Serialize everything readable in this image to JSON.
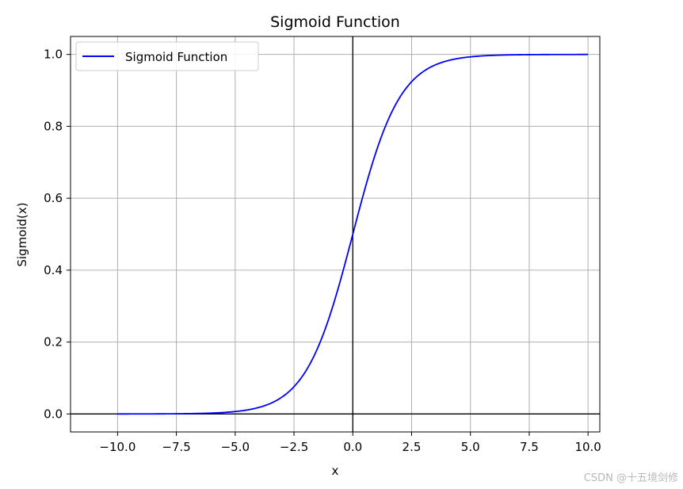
{
  "chart_data": {
    "type": "line",
    "title": "Sigmoid Function",
    "xlabel": "x",
    "ylabel": "Sigmoid(x)",
    "xlim": [
      -12.0,
      10.5
    ],
    "ylim": [
      -0.05,
      1.05
    ],
    "xticks": [
      -10.0,
      -7.5,
      -5.0,
      -2.5,
      0.0,
      2.5,
      5.0,
      7.5,
      10.0
    ],
    "xtick_labels": [
      "−10.0",
      "−7.5",
      "−5.0",
      "−2.5",
      "0.0",
      "2.5",
      "5.0",
      "7.5",
      "10.0"
    ],
    "yticks": [
      0.0,
      0.2,
      0.4,
      0.6,
      0.8,
      1.0
    ],
    "ytick_labels": [
      "0.0",
      "0.2",
      "0.4",
      "0.6",
      "0.8",
      "1.0"
    ],
    "grid": true,
    "legend_position": "upper-left",
    "reference_lines": {
      "x": 0,
      "y": 0,
      "color": "#000000"
    },
    "series": [
      {
        "name": "Sigmoid Function",
        "color": "#0000ff",
        "x": [
          -10,
          -9,
          -8,
          -7,
          -6,
          -5,
          -4,
          -3.5,
          -3,
          -2.5,
          -2,
          -1.5,
          -1,
          -0.5,
          0,
          0.5,
          1,
          1.5,
          2,
          2.5,
          3,
          3.5,
          4,
          5,
          6,
          7,
          8,
          9,
          10
        ],
        "y": [
          4.54e-05,
          0.0001234,
          0.0003354,
          0.000911,
          0.002473,
          0.006693,
          0.017986,
          0.029312,
          0.047426,
          0.075858,
          0.119203,
          0.182426,
          0.268941,
          0.377541,
          0.5,
          0.622459,
          0.731059,
          0.817574,
          0.880797,
          0.924142,
          0.952574,
          0.970688,
          0.982014,
          0.993307,
          0.997527,
          0.999089,
          0.999665,
          0.999877,
          0.999955
        ]
      }
    ]
  },
  "watermark": "CSDN @十五境剑修"
}
